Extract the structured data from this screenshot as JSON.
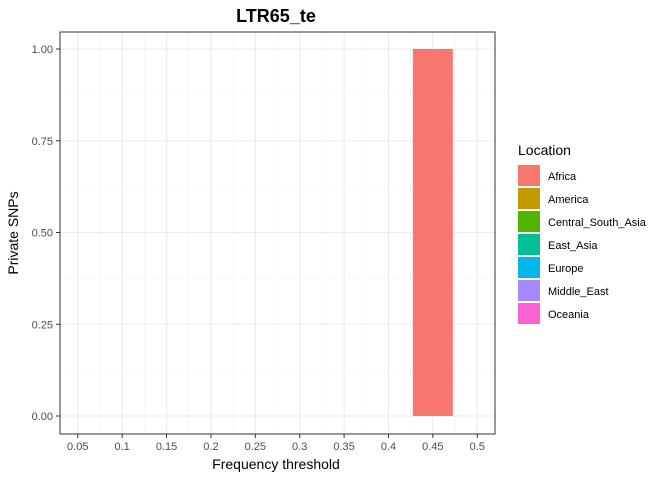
{
  "chart_data": {
    "type": "bar",
    "title": "LTR65_te",
    "xlabel": "Frequency threshold",
    "ylabel": "Private SNPs",
    "x_ticks": [
      "0.05",
      "0.1",
      "0.15",
      "0.2",
      "0.25",
      "0.3",
      "0.35",
      "0.4",
      "0.45",
      "0.5"
    ],
    "y_ticks": [
      "0.00",
      "0.25",
      "0.50",
      "0.75",
      "1.00"
    ],
    "ylim": [
      0,
      1
    ],
    "grid": true,
    "legend": {
      "title": "Location",
      "position": "right",
      "entries": [
        {
          "name": "Africa",
          "color": "#F8766D"
        },
        {
          "name": "America",
          "color": "#C49A00"
        },
        {
          "name": "Central_South_Asia",
          "color": "#53B400"
        },
        {
          "name": "East_Asia",
          "color": "#00C094"
        },
        {
          "name": "Europe",
          "color": "#00B6EB"
        },
        {
          "name": "Middle_East",
          "color": "#A58AFF"
        },
        {
          "name": "Oceania",
          "color": "#FB61D7"
        }
      ]
    },
    "bars": [
      {
        "x": "0.45",
        "series": "Africa",
        "value": 1.0
      }
    ]
  }
}
